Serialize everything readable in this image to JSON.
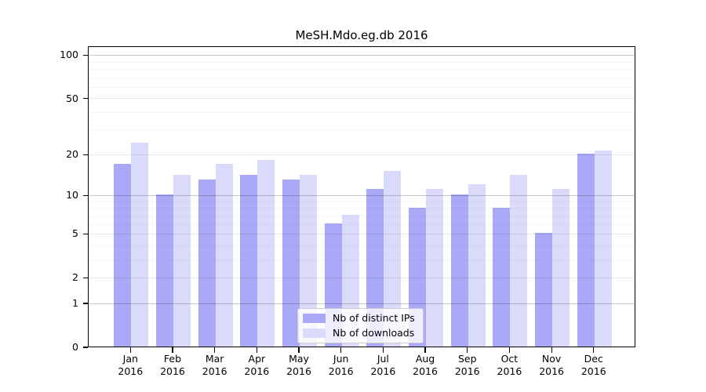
{
  "title": "MeSH.Mdo.eg.db 2016",
  "chart_data": {
    "type": "bar",
    "title": "MeSH.Mdo.eg.db 2016",
    "categories": [
      "Jan",
      "Feb",
      "Mar",
      "Apr",
      "May",
      "Jun",
      "Jul",
      "Aug",
      "Sep",
      "Oct",
      "Nov",
      "Dec"
    ],
    "x_year_label": "2016",
    "series": [
      {
        "name": "Nb of distinct IPs",
        "color": "#a9a9f7",
        "values": [
          17,
          10,
          13,
          14,
          13,
          6,
          11,
          8,
          10,
          8,
          5,
          20
        ]
      },
      {
        "name": "Nb of downloads",
        "color": "#dadafa",
        "values": [
          24,
          14,
          17,
          18,
          14,
          7,
          15,
          11,
          12,
          14,
          11,
          21
        ]
      }
    ],
    "y_scale": "log10(1+y)",
    "y_ticks": [
      0,
      1,
      2,
      5,
      10,
      20,
      50,
      100
    ],
    "ylim": [
      0,
      115
    ],
    "grid": true,
    "legend_position": "lower center",
    "axis_color": "#000000",
    "background_color": "#ffffff"
  }
}
